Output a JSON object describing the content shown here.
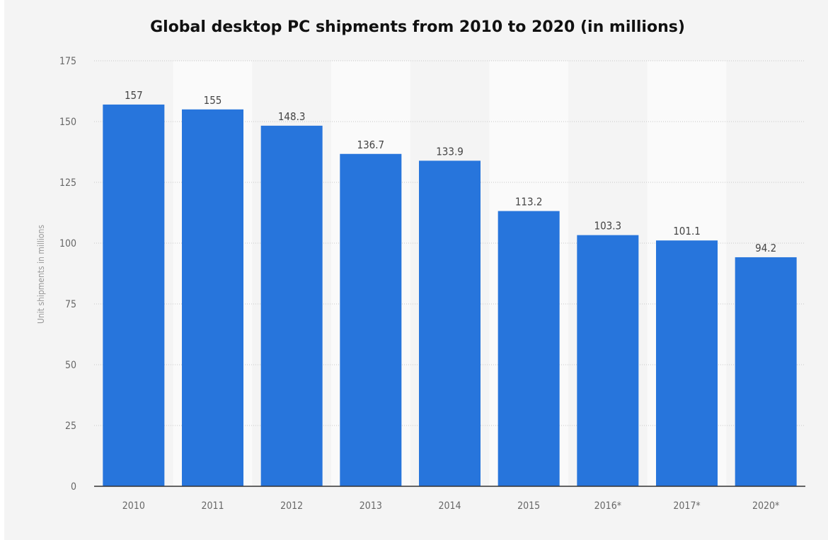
{
  "chart_data": {
    "type": "bar",
    "title": "Global desktop PC shipments from 2010 to 2020 (in millions)",
    "categories": [
      "2010",
      "2011",
      "2012",
      "2013",
      "2014",
      "2015",
      "2016*",
      "2017*",
      "2020*"
    ],
    "values": [
      157,
      155,
      148.3,
      136.7,
      133.9,
      113.2,
      103.3,
      101.1,
      94.2
    ],
    "value_labels": [
      "157",
      "155",
      "148.3",
      "136.7",
      "133.9",
      "113.2",
      "103.3",
      "101.1",
      "94.2"
    ],
    "xlabel": "",
    "ylabel": "Unit shipments in millions",
    "ylim": [
      0,
      175
    ],
    "yticks": [
      0,
      25,
      50,
      75,
      100,
      125,
      150,
      175
    ],
    "grid": true,
    "bar_color": "#2775dc",
    "legend": "none"
  }
}
